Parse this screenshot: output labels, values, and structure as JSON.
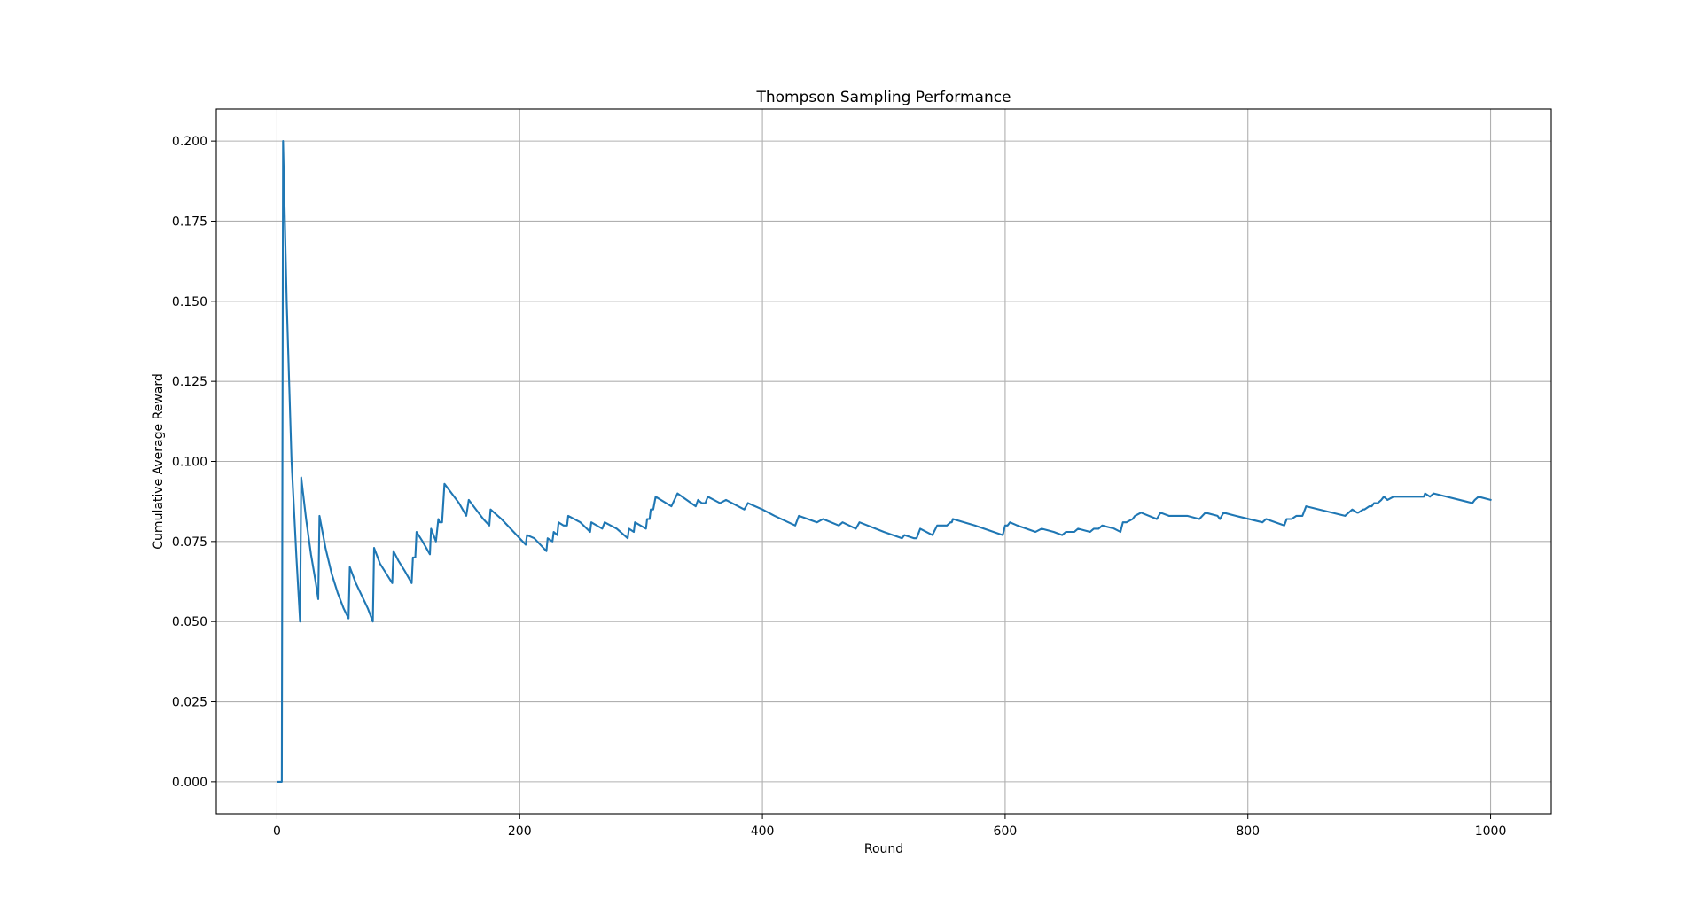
{
  "chart_data": {
    "type": "line",
    "title": "Thompson Sampling Performance",
    "xlabel": "Round",
    "ylabel": "Cumulative Average Reward",
    "xlim": [
      -50,
      1050
    ],
    "ylim": [
      -0.01,
      0.21
    ],
    "xticks": [
      0,
      200,
      400,
      600,
      800,
      1000
    ],
    "xtick_labels": [
      "0",
      "200",
      "400",
      "600",
      "800",
      "1000"
    ],
    "yticks": [
      0.0,
      0.025,
      0.05,
      0.075,
      0.1,
      0.125,
      0.15,
      0.175,
      0.2
    ],
    "ytick_labels": [
      "0.000",
      "0.025",
      "0.050",
      "0.075",
      "0.100",
      "0.125",
      "0.150",
      "0.175",
      "0.200"
    ],
    "grid": true,
    "legend": "none",
    "series": [
      {
        "color": "#1f77b4",
        "x": [
          1,
          4,
          5,
          8,
          12,
          16,
          19,
          20,
          24,
          28,
          32,
          34,
          35,
          40,
          45,
          50,
          55,
          59,
          60,
          65,
          70,
          75,
          79,
          80,
          85,
          90,
          95,
          96,
          100,
          105,
          111,
          112,
          114,
          115,
          120,
          126,
          127,
          131,
          133,
          134,
          136,
          138,
          144,
          150,
          156,
          158,
          164,
          170,
          175,
          176,
          185,
          195,
          205,
          206,
          212,
          222,
          223,
          227,
          228,
          231,
          232,
          236,
          237,
          239,
          240,
          250,
          258,
          259,
          268,
          270,
          280,
          289,
          290,
          294,
          295,
          304,
          305,
          307,
          308,
          310,
          312,
          325,
          330,
          345,
          347,
          350,
          353,
          355,
          365,
          370,
          385,
          388,
          400,
          410,
          427,
          430,
          445,
          450,
          463,
          466,
          477,
          480,
          500,
          515,
          517,
          525,
          527,
          530,
          540,
          544,
          550,
          552,
          555,
          556,
          557,
          575,
          598,
          600,
          602,
          604,
          610,
          625,
          630,
          640,
          647,
          650,
          657,
          660,
          670,
          673,
          677,
          680,
          690,
          695,
          697,
          700,
          705,
          707,
          712,
          725,
          728,
          735,
          745,
          750,
          760,
          765,
          775,
          777,
          780,
          790,
          812,
          815,
          830,
          832,
          836,
          840,
          845,
          848,
          880,
          883,
          886,
          890,
          891,
          895,
          896,
          900,
          902,
          904,
          907,
          910,
          912,
          915,
          920,
          925,
          935,
          937,
          945,
          946,
          950,
          953,
          985,
          987,
          990,
          1000
        ],
        "values": [
          0.0,
          0.0,
          0.2,
          0.15,
          0.1,
          0.07,
          0.05,
          0.095,
          0.082,
          0.071,
          0.062,
          0.057,
          0.083,
          0.073,
          0.065,
          0.059,
          0.054,
          0.051,
          0.067,
          0.062,
          0.058,
          0.054,
          0.05,
          0.073,
          0.068,
          0.065,
          0.062,
          0.072,
          0.069,
          0.066,
          0.062,
          0.07,
          0.07,
          0.078,
          0.075,
          0.071,
          0.079,
          0.075,
          0.082,
          0.081,
          0.081,
          0.093,
          0.09,
          0.087,
          0.083,
          0.088,
          0.085,
          0.082,
          0.08,
          0.085,
          0.082,
          0.078,
          0.074,
          0.077,
          0.076,
          0.072,
          0.076,
          0.075,
          0.078,
          0.077,
          0.081,
          0.08,
          0.08,
          0.08,
          0.083,
          0.081,
          0.078,
          0.081,
          0.079,
          0.081,
          0.079,
          0.076,
          0.079,
          0.078,
          0.081,
          0.079,
          0.082,
          0.082,
          0.085,
          0.085,
          0.089,
          0.086,
          0.09,
          0.086,
          0.088,
          0.087,
          0.087,
          0.089,
          0.087,
          0.088,
          0.085,
          0.087,
          0.085,
          0.083,
          0.08,
          0.083,
          0.081,
          0.082,
          0.08,
          0.081,
          0.079,
          0.081,
          0.078,
          0.076,
          0.077,
          0.076,
          0.076,
          0.079,
          0.077,
          0.08,
          0.08,
          0.08,
          0.081,
          0.081,
          0.082,
          0.08,
          0.077,
          0.08,
          0.08,
          0.081,
          0.08,
          0.078,
          0.079,
          0.078,
          0.077,
          0.078,
          0.078,
          0.079,
          0.078,
          0.079,
          0.079,
          0.08,
          0.079,
          0.078,
          0.081,
          0.081,
          0.082,
          0.083,
          0.084,
          0.082,
          0.084,
          0.083,
          0.083,
          0.083,
          0.082,
          0.084,
          0.083,
          0.082,
          0.084,
          0.083,
          0.081,
          0.082,
          0.08,
          0.082,
          0.082,
          0.083,
          0.083,
          0.086,
          0.083,
          0.084,
          0.085,
          0.084,
          0.084,
          0.085,
          0.085,
          0.086,
          0.086,
          0.087,
          0.087,
          0.088,
          0.089,
          0.088,
          0.089,
          0.089,
          0.089,
          0.089,
          0.089,
          0.09,
          0.089,
          0.09,
          0.087,
          0.088,
          0.089,
          0.088
        ]
      }
    ]
  }
}
